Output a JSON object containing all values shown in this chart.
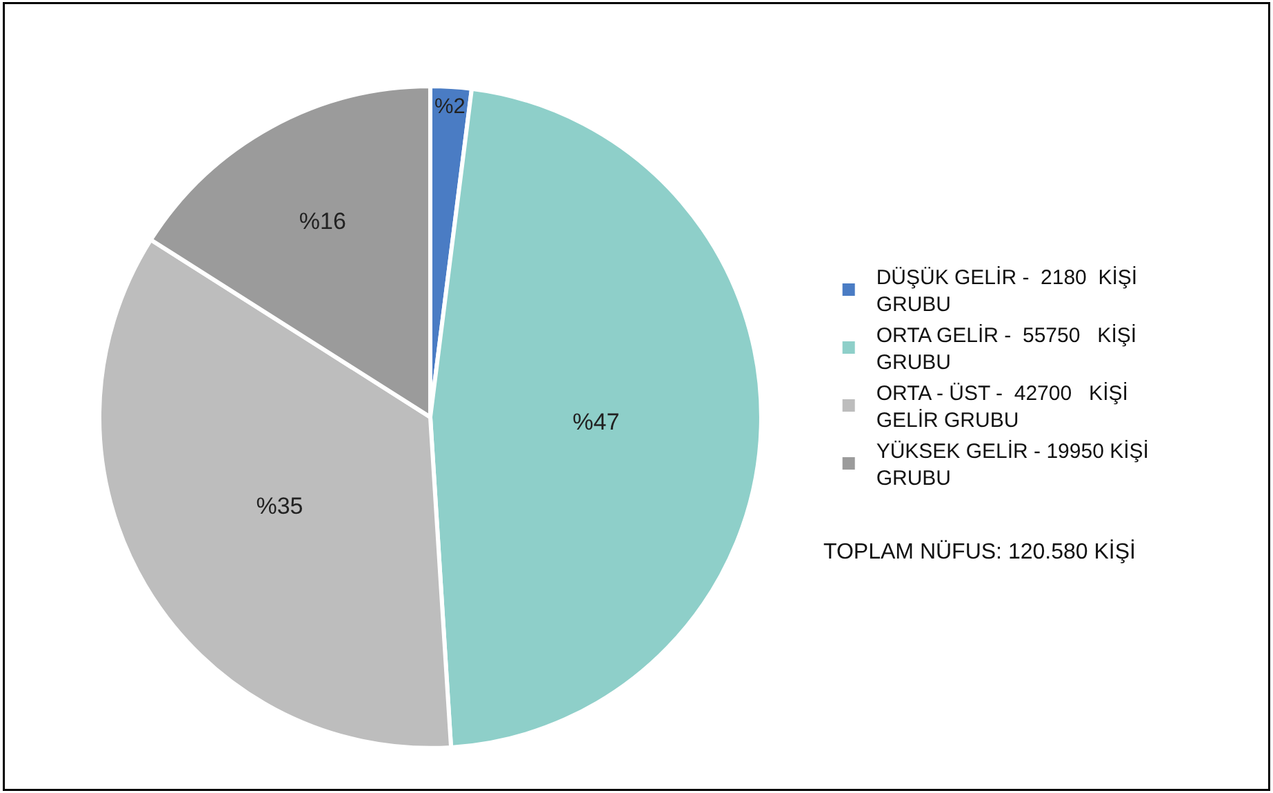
{
  "chart_data": {
    "type": "pie",
    "categories": [
      "DÜŞÜK GELİR -  2180  KİŞİ\nGRUBU",
      "ORTA GELİR -  55750   KİŞİ\nGRUBU",
      "ORTA - ÜST -  42700   KİŞİ\nGELİR GRUBU",
      "YÜKSEK GELİR - 19950 KİŞİ\nGRUBU"
    ],
    "values": [
      2,
      47,
      35,
      16
    ],
    "value_labels": [
      "%2",
      "%47",
      "%35",
      "%16"
    ],
    "colors": [
      "#4a7cc4",
      "#8ecfc9",
      "#bdbdbd",
      "#9b9b9b"
    ],
    "legend": "right",
    "annotations": [
      "TOPLAM NÜFUS: 120.580 KİŞİ"
    ]
  }
}
